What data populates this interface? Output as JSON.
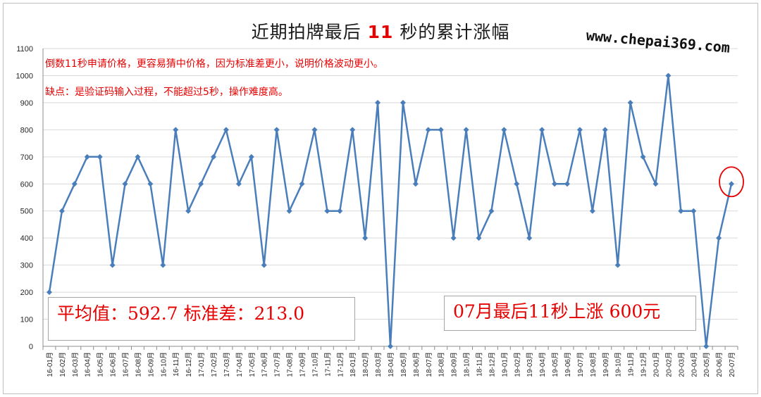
{
  "title": {
    "prefix": "近期拍牌最后 ",
    "highlight": "11",
    "suffix": " 秒的累计涨幅"
  },
  "watermark": "www.chepai369.com",
  "notes": [
    "倒数11秒申请价格，更容易猜中价格，因为标准差更小，说明价格波动更小。",
    "缺点：是验证码输入过程，不能超过5秒，操作难度高。"
  ],
  "stats": {
    "mean_label": "平均值：592.7",
    "std_label": "标准差：213.0",
    "callout": "07月最后11秒上涨 600元"
  },
  "colors": {
    "line": "#4a7ebb",
    "accent": "#e60000",
    "grid": "#d9d9d9"
  },
  "chart_data": {
    "type": "line",
    "ylim": [
      0,
      1100
    ],
    "yticks": [
      0,
      100,
      200,
      300,
      400,
      500,
      600,
      700,
      800,
      900,
      1000,
      1100
    ],
    "grid": "horizontal",
    "categories": [
      "16-01月",
      "16-02月",
      "16-03月",
      "16-04月",
      "16-05月",
      "16-06月",
      "16-07月",
      "16-08月",
      "16-09月",
      "16-10月",
      "16-11月",
      "16-12月",
      "17-01月",
      "17-02月",
      "17-03月",
      "17-04月",
      "17-05月",
      "17-06月",
      "17-07月",
      "17-08月",
      "17-09月",
      "17-10月",
      "17-11月",
      "17-12月",
      "18-01月",
      "18-02月",
      "18-03月",
      "18-04月",
      "18-05月",
      "18-06月",
      "18-07月",
      "18-08月",
      "18-09月",
      "18-10月",
      "18-11月",
      "18-12月",
      "19-01月",
      "19-02月",
      "19-03月",
      "19-04月",
      "19-05月",
      "19-06月",
      "19-07月",
      "19-08月",
      "19-09月",
      "19-10月",
      "19-11月",
      "19-12月",
      "20-01月",
      "20-02月",
      "20-03月",
      "20-04月",
      "20-05月",
      "20-06月",
      "20-07月"
    ],
    "values": [
      200,
      500,
      600,
      700,
      700,
      300,
      600,
      700,
      600,
      300,
      800,
      500,
      600,
      700,
      800,
      600,
      700,
      300,
      800,
      500,
      600,
      800,
      500,
      500,
      800,
      400,
      900,
      0,
      900,
      600,
      800,
      800,
      400,
      800,
      400,
      500,
      800,
      600,
      400,
      800,
      600,
      600,
      800,
      500,
      800,
      300,
      900,
      700,
      600,
      1000,
      500,
      500,
      0,
      400,
      600
    ],
    "highlight_index": 54
  }
}
